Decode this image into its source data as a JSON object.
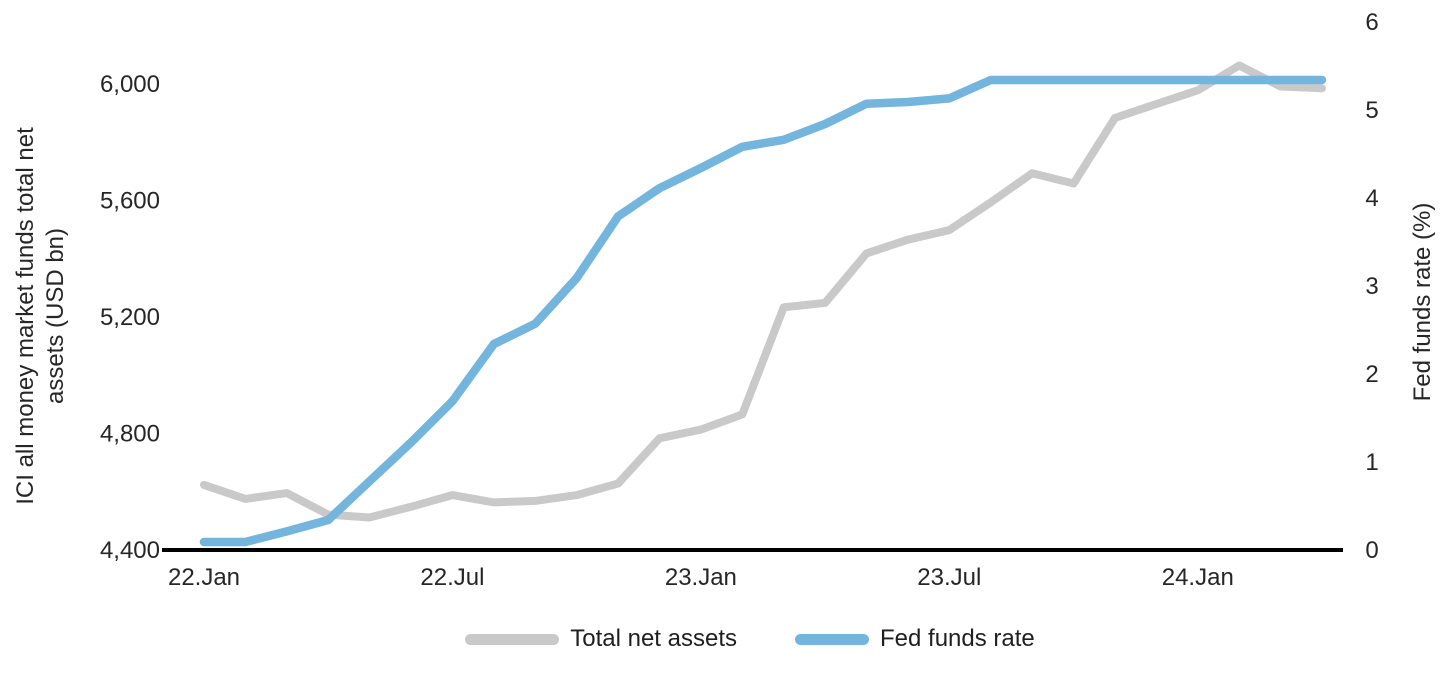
{
  "chart_data": {
    "type": "line",
    "x": [
      "22.Jan",
      "22.Feb",
      "22.Mar",
      "22.Apr",
      "22.May",
      "22.Jun",
      "22.Jul",
      "22.Aug",
      "22.Sep",
      "22.Oct",
      "22.Nov",
      "22.Dec",
      "23.Jan",
      "23.Feb",
      "23.Mar",
      "23.Apr",
      "23.May",
      "23.Jun",
      "23.Jul",
      "23.Aug",
      "23.Sep",
      "23.Oct",
      "23.Nov",
      "23.Dec",
      "24.Jan",
      "24.Feb",
      "24.Mar",
      "24.Apr"
    ],
    "series": [
      {
        "name": "Total net assets",
        "yaxis": "left",
        "color": "#c9c9c9",
        "stroke_width": 8,
        "values": [
          4620,
          4572,
          4592,
          4518,
          4508,
          4545,
          4585,
          4560,
          4565,
          4585,
          4625,
          4780,
          4810,
          4862,
          5230,
          5245,
          5415,
          5462,
          5495,
          5590,
          5690,
          5655,
          5880,
          5928,
          5975,
          6060,
          5988,
          5982
        ]
      },
      {
        "name": "Fed funds rate",
        "yaxis": "right",
        "color": "#74b5de",
        "stroke_width": 8.5,
        "values": [
          0.08,
          0.08,
          0.2,
          0.33,
          0.77,
          1.21,
          1.68,
          2.33,
          2.56,
          3.08,
          3.78,
          4.1,
          4.33,
          4.57,
          4.65,
          4.83,
          5.06,
          5.08,
          5.12,
          5.33,
          5.33,
          5.33,
          5.33,
          5.33,
          5.33,
          5.33,
          5.33,
          5.33
        ]
      }
    ],
    "left_axis": {
      "label": "ICI all money market funds total net assets (USD bn)",
      "label_line1": "ICI all money market funds total net",
      "label_line2": "assets (USD bn)",
      "ylim": [
        4400,
        6000
      ],
      "ticks": [
        4400,
        4800,
        5200,
        5600,
        6000
      ],
      "tick_labels": [
        "4,400",
        "4,800",
        "5,200",
        "5,600",
        "6,000"
      ]
    },
    "right_axis": {
      "label": "Fed funds rate (%)",
      "ylim": [
        0,
        6
      ],
      "ticks": [
        0,
        1,
        2,
        3,
        4,
        5,
        6
      ],
      "tick_labels": [
        "0",
        "1",
        "2",
        "3",
        "4",
        "5",
        "6"
      ]
    },
    "x_tick_labels": [
      {
        "label": "22.Jan",
        "index": 0
      },
      {
        "label": "22.Jul",
        "index": 6
      },
      {
        "label": "23.Jan",
        "index": 12
      },
      {
        "label": "23.Jul",
        "index": 18
      },
      {
        "label": "24.Jan",
        "index": 24
      }
    ],
    "grid": false,
    "title": "",
    "legend": {
      "position": "bottom",
      "entries": [
        "Total net assets",
        "Fed funds rate"
      ]
    }
  },
  "colors": {
    "background": "#ffffff",
    "text": "#262626",
    "axis_line": "#000000",
    "total_net_assets": "#c9c9c9",
    "fed_funds_rate": "#74b5de"
  }
}
